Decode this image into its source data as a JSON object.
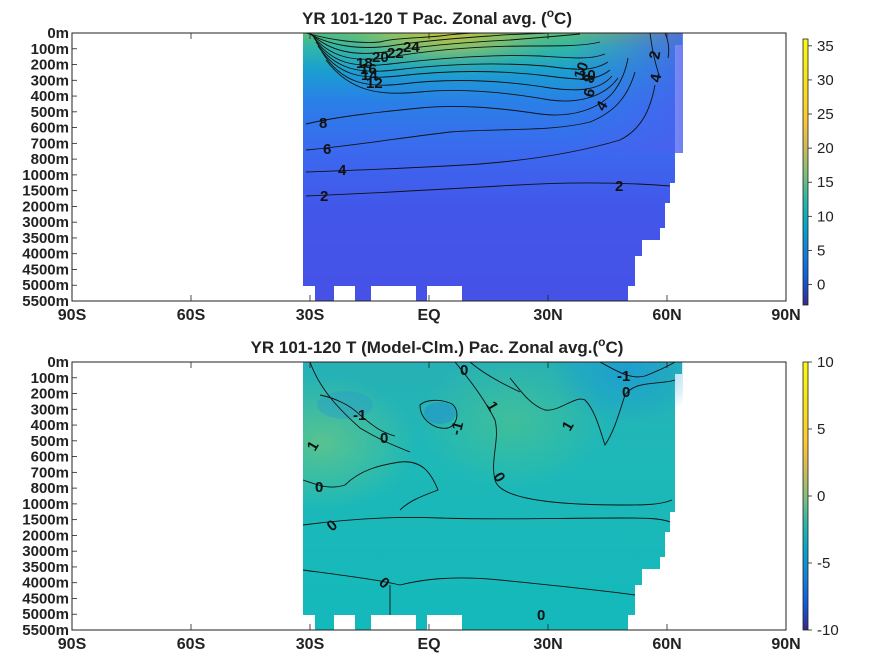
{
  "chart_data": [
    {
      "type": "heatmap",
      "title_text": "YR 101-120 T Pac. Zonal avg. (",
      "title_sup": "o",
      "title_end": "C)",
      "y_ticks": [
        "0m",
        "100m",
        "200m",
        "300m",
        "400m",
        "500m",
        "600m",
        "700m",
        "800m",
        "1000m",
        "1500m",
        "2000m",
        "3000m",
        "3500m",
        "4000m",
        "4500m",
        "5000m",
        "5500m"
      ],
      "x_ticks": [
        "90S",
        "60S",
        "30S",
        "EQ",
        "30N",
        "60N",
        "90N"
      ],
      "xlim": [
        -90,
        90
      ],
      "colorbar": {
        "min": -3,
        "max": 36,
        "ticks": [
          35,
          30,
          25,
          20,
          15,
          10,
          5,
          0
        ]
      },
      "contour_labels": [
        "24",
        "22",
        "20",
        "18",
        "16",
        "14",
        "12",
        "10",
        "8",
        "6",
        "4",
        "2",
        "2",
        "4",
        "6",
        "8",
        "10",
        "2",
        "4"
      ],
      "data_extent_lat": [
        -35,
        60
      ],
      "surface_max_lat": -5,
      "surface_max_value": 28
    },
    {
      "type": "heatmap",
      "title_text": "YR 101-120 T (Model-Clm.) Pac. Zonal avg.(",
      "title_sup": "o",
      "title_end": "C)",
      "y_ticks": [
        "0m",
        "100m",
        "200m",
        "300m",
        "400m",
        "500m",
        "600m",
        "700m",
        "800m",
        "1000m",
        "1500m",
        "2000m",
        "3000m",
        "3500m",
        "4000m",
        "4500m",
        "5000m",
        "5500m"
      ],
      "x_ticks": [
        "90S",
        "60S",
        "30S",
        "EQ",
        "30N",
        "60N",
        "90N"
      ],
      "xlim": [
        -90,
        90
      ],
      "colorbar": {
        "min": -10,
        "max": 10,
        "ticks": [
          10,
          5,
          0,
          -5,
          -10
        ]
      },
      "contour_labels": [
        "0",
        "-1",
        "0",
        "1",
        "-1",
        "0",
        "1",
        "0",
        "-1",
        "1",
        "0",
        "0",
        "0",
        "0"
      ],
      "data_extent_lat": [
        -35,
        60
      ]
    }
  ]
}
